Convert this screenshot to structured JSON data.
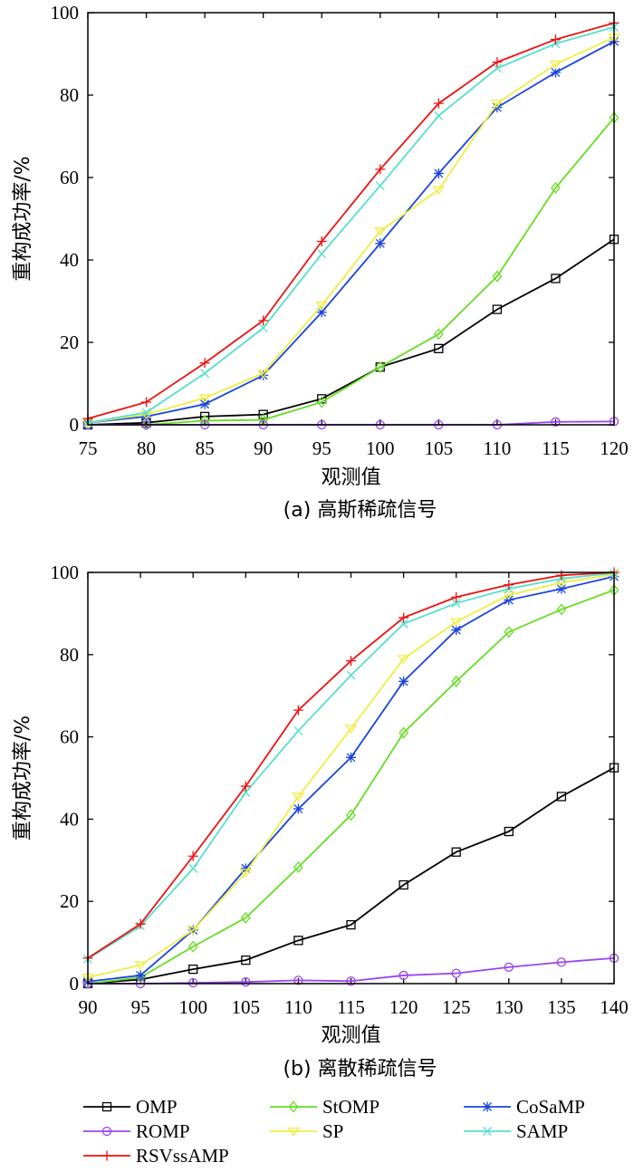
{
  "chart_data": [
    {
      "type": "line",
      "caption": "(a) 高斯稀疏信号",
      "xlabel": "观测值",
      "ylabel": "重构成功率/%",
      "xlim": [
        75,
        120
      ],
      "ylim": [
        0,
        100
      ],
      "xticks": [
        75,
        80,
        85,
        90,
        95,
        100,
        105,
        110,
        115,
        120
      ],
      "yticks": [
        0,
        20,
        40,
        60,
        80,
        100
      ],
      "grid": false,
      "x": [
        75,
        80,
        85,
        90,
        95,
        100,
        105,
        110,
        115,
        120
      ],
      "series": [
        {
          "name": "OMP",
          "color": "#000000",
          "marker": "square",
          "values": [
            0,
            0.5,
            2,
            2.5,
            6.3,
            14,
            18.5,
            28,
            35.5,
            45
          ]
        },
        {
          "name": "StOMP",
          "color": "#66dd22",
          "marker": "diamond",
          "values": [
            0,
            0,
            1,
            1.2,
            5.5,
            14,
            22,
            36,
            57.5,
            74.5
          ]
        },
        {
          "name": "CoSaMP",
          "color": "#1a44dd",
          "marker": "asterisk",
          "values": [
            0.5,
            2,
            5,
            12,
            27.3,
            44,
            61,
            77,
            85.5,
            93
          ]
        },
        {
          "name": "ROMP",
          "color": "#9944ee",
          "marker": "circle",
          "values": [
            0,
            0,
            0,
            0,
            0,
            0,
            0,
            0,
            0.7,
            0.8
          ]
        },
        {
          "name": "SP",
          "color": "#eeee44",
          "marker": "triangle-down",
          "values": [
            0.5,
            2.5,
            6.5,
            12.5,
            29,
            47,
            57,
            78,
            87.5,
            94
          ]
        },
        {
          "name": "SAMP",
          "color": "#55e0cc",
          "marker": "x",
          "values": [
            0.5,
            3,
            12.5,
            23.5,
            41.5,
            58,
            75,
            86.5,
            92.5,
            96.5
          ]
        },
        {
          "name": "RSVssAMP",
          "color": "#ee1111",
          "marker": "plus",
          "values": [
            1.5,
            5.5,
            15,
            25.3,
            44.5,
            62,
            78,
            88,
            93.5,
            97.5
          ]
        }
      ]
    },
    {
      "type": "line",
      "caption": "(b) 离散稀疏信号",
      "xlabel": "观测值",
      "ylabel": "重构成功率/%",
      "xlim": [
        90,
        140
      ],
      "ylim": [
        0,
        100
      ],
      "xticks": [
        90,
        95,
        100,
        105,
        110,
        115,
        120,
        125,
        130,
        135,
        140
      ],
      "yticks": [
        0,
        20,
        40,
        60,
        80,
        100
      ],
      "grid": false,
      "x": [
        90,
        95,
        100,
        105,
        110,
        115,
        120,
        125,
        130,
        135,
        140
      ],
      "series": [
        {
          "name": "OMP",
          "color": "#000000",
          "marker": "square",
          "values": [
            0,
            1,
            3.5,
            5.7,
            10.5,
            14.3,
            24,
            32,
            37,
            45.5,
            52.5
          ]
        },
        {
          "name": "StOMP",
          "color": "#66dd22",
          "marker": "diamond",
          "values": [
            0,
            1.5,
            9,
            16,
            28.3,
            41,
            61,
            73.5,
            85.5,
            91,
            95.7
          ]
        },
        {
          "name": "CoSaMP",
          "color": "#1a44dd",
          "marker": "asterisk",
          "values": [
            0.5,
            2,
            13,
            28,
            42.5,
            55,
            73.5,
            86,
            93.3,
            96,
            99
          ]
        },
        {
          "name": "ROMP",
          "color": "#9944ee",
          "marker": "circle",
          "values": [
            0,
            0,
            0.2,
            0.4,
            0.8,
            0.6,
            2,
            2.5,
            4,
            5.2,
            6.2
          ]
        },
        {
          "name": "SP",
          "color": "#eeee44",
          "marker": "triangle-down",
          "values": [
            1.5,
            4.5,
            13,
            27,
            45.5,
            62,
            79,
            88,
            94.5,
            97.5,
            99.5
          ]
        },
        {
          "name": "SAMP",
          "color": "#55e0cc",
          "marker": "x",
          "values": [
            6,
            14,
            28,
            46.5,
            61.5,
            75,
            87.5,
            92.5,
            96,
            98.5,
            99.8
          ]
        },
        {
          "name": "RSVssAMP",
          "color": "#ee1111",
          "marker": "plus",
          "values": [
            6.2,
            14.5,
            31,
            48,
            66.5,
            78.5,
            89,
            94,
            97,
            99.3,
            100
          ]
        }
      ]
    }
  ],
  "legend": {
    "placement": "bottom",
    "items": [
      "OMP",
      "StOMP",
      "CoSaMP",
      "ROMP",
      "SP",
      "SAMP",
      "RSVssAMP"
    ]
  }
}
